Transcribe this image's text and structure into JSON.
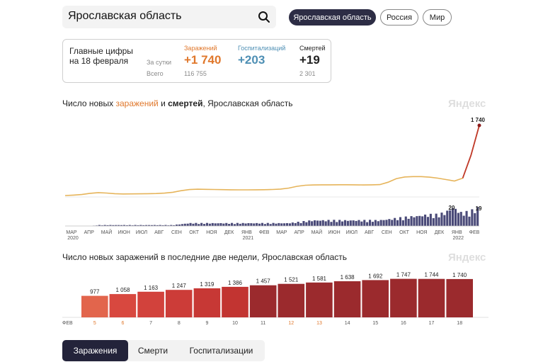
{
  "search": {
    "value": "Ярославская область"
  },
  "regions": [
    "Ярославская область",
    "Россия",
    "Мир"
  ],
  "summary": {
    "title_line1": "Главные цифры",
    "title_line2": "на 18 февраля",
    "row_day": "За сутки",
    "row_total": "Всего",
    "infections": {
      "label": "Заражений",
      "day": "+1 740",
      "total": "116 755",
      "color": "#e0782c"
    },
    "hospital": {
      "label": "Госпитализаций",
      "day": "+203",
      "color": "#4e8fb4"
    },
    "deaths": {
      "label": "Смертей",
      "day": "+19",
      "total": "2 301",
      "color": "#222222"
    }
  },
  "chart1": {
    "title_pre": "Число новых ",
    "title_infect": "заражений",
    "title_mid": " и ",
    "title_deaths": "смертей",
    "title_post": ", Ярославская область",
    "brand": "Яндекс"
  },
  "chart2": {
    "title": "Число новых заражений в последние две недели, Ярославская область",
    "brand": "Яндекс"
  },
  "chart_data": [
    {
      "type": "line",
      "infections_series": {
        "values": [
          0,
          10,
          25,
          55,
          72,
          62,
          45,
          38,
          40,
          42,
          45,
          50,
          60,
          80,
          120,
          148,
          156,
          153,
          150,
          146,
          142,
          140,
          140,
          142,
          145,
          150,
          160,
          185,
          228,
          255,
          262,
          266,
          266,
          268,
          268,
          266,
          262,
          265,
          270,
          330,
          420,
          460,
          470,
          470,
          455,
          430,
          395,
          360,
          430,
          1000,
          1740
        ],
        "peak_label": "1 740",
        "color": "#e6b45a"
      },
      "deaths_series": {
        "values": [
          0,
          0,
          0,
          0,
          1,
          1,
          1,
          1,
          1,
          1,
          1,
          1,
          1,
          1,
          2,
          3,
          3,
          3,
          3,
          3,
          3,
          3,
          3,
          3,
          3,
          3,
          3,
          3,
          4,
          5,
          6,
          6,
          6,
          6,
          6,
          6,
          6,
          6,
          6,
          7,
          8,
          9,
          10,
          11,
          12,
          12,
          14,
          20,
          14,
          15,
          19
        ],
        "labels": [
          "20",
          "19"
        ],
        "color": "#4a4a78"
      },
      "months": [
        "МАР",
        "АПР",
        "МАЙ",
        "ИЮН",
        "ИЮЛ",
        "АВГ",
        "СЕН",
        "ОКТ",
        "НОЯ",
        "ДЕК",
        "ЯНВ",
        "ФЕВ",
        "МАР",
        "АПР",
        "МАЙ",
        "ИЮН",
        "ИЮЛ",
        "АВГ",
        "СЕН",
        "ОКТ",
        "НОЯ",
        "ДЕК",
        "ЯНВ",
        "ФЕВ"
      ],
      "years": [
        {
          "after_index": 0,
          "label": "2020"
        },
        {
          "after_index": 10,
          "label": "2021"
        },
        {
          "after_index": 22,
          "label": "2022"
        }
      ]
    },
    {
      "type": "bar",
      "x_prefix": "ФЕВ",
      "categories": [
        "5",
        "6",
        "7",
        "8",
        "9",
        "10",
        "11",
        "12",
        "13",
        "14",
        "15",
        "16",
        "17",
        "18"
      ],
      "weekend_categories": [
        "5",
        "6",
        "12",
        "13"
      ],
      "values": [
        977,
        1058,
        1163,
        1247,
        1319,
        1386,
        1457,
        1521,
        1581,
        1638,
        1692,
        1747,
        1744,
        1740
      ],
      "value_labels": [
        "977",
        "1 058",
        "1 163",
        "1 247",
        "1 319",
        "1 386",
        "1 457",
        "1 521",
        "1 581",
        "1 638",
        "1 692",
        "1 747",
        "1 744",
        "1 740"
      ],
      "colors": [
        "#e2654c",
        "#d8483f",
        "#d2423c",
        "#cc3c38",
        "#c73835",
        "#c23431",
        "#9b2a2d",
        "#9b2a2d",
        "#9b2a2d",
        "#9b2a2d",
        "#9b2a2d",
        "#9b2a2d",
        "#9b2a2d",
        "#9b2a2d"
      ]
    }
  ],
  "tabs": [
    "Заражения",
    "Смерти",
    "Госпитализации"
  ]
}
